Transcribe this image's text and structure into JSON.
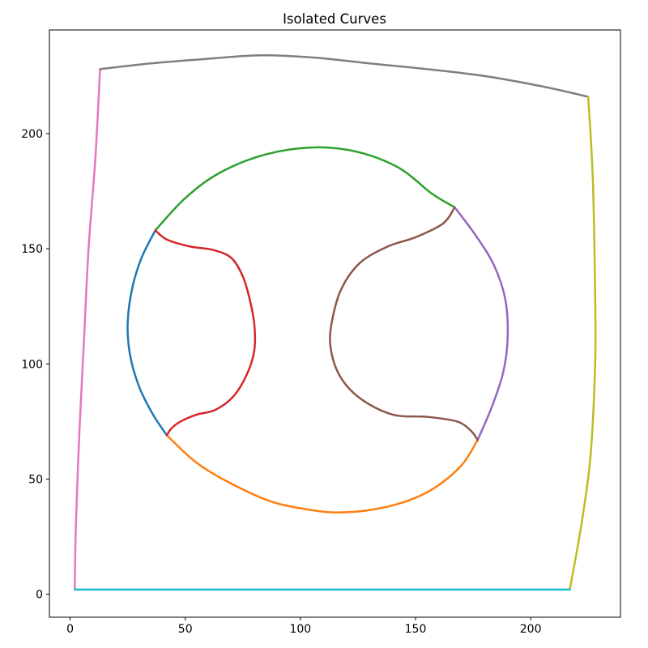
{
  "chart_data": {
    "type": "line",
    "title": "Isolated Curves",
    "xlabel": "",
    "ylabel": "",
    "xlim": [
      -9,
      239
    ],
    "ylim": [
      -10,
      245
    ],
    "x_ticks": [
      0,
      50,
      100,
      150,
      200
    ],
    "y_ticks": [
      0,
      50,
      100,
      150,
      200
    ],
    "grid": false,
    "legend": "none",
    "series": [
      {
        "color": "#1f77b4",
        "points": [
          [
            37,
            158
          ],
          [
            31,
            146
          ],
          [
            27,
            133
          ],
          [
            25,
            118
          ],
          [
            26,
            104
          ],
          [
            30,
            90
          ],
          [
            36,
            78
          ],
          [
            42,
            69
          ]
        ]
      },
      {
        "color": "#ff7f0e",
        "points": [
          [
            42,
            69
          ],
          [
            55,
            57
          ],
          [
            70,
            48
          ],
          [
            88,
            40
          ],
          [
            105,
            36.5
          ],
          [
            116,
            35.5
          ],
          [
            130,
            36.5
          ],
          [
            145,
            40
          ],
          [
            158,
            46
          ],
          [
            170,
            56
          ],
          [
            177,
            67
          ]
        ]
      },
      {
        "color": "#2ca02c",
        "points": [
          [
            37,
            158
          ],
          [
            50,
            172
          ],
          [
            65,
            183
          ],
          [
            85,
            191
          ],
          [
            106,
            194
          ],
          [
            125,
            192
          ],
          [
            143,
            185
          ],
          [
            157,
            174
          ],
          [
            167,
            168
          ]
        ]
      },
      {
        "color": "#d62728",
        "points": [
          [
            37,
            158
          ],
          [
            42,
            154
          ],
          [
            52,
            151
          ],
          [
            62,
            149.5
          ],
          [
            70,
            146
          ],
          [
            75,
            138
          ],
          [
            78,
            128
          ],
          [
            80,
            117
          ],
          [
            80,
            106
          ],
          [
            77,
            96
          ],
          [
            71,
            86
          ],
          [
            63,
            80
          ],
          [
            55,
            78
          ],
          [
            48,
            75
          ],
          [
            44,
            72
          ],
          [
            42,
            69
          ]
        ]
      },
      {
        "color": "#9467bd",
        "points": [
          [
            167,
            168
          ],
          [
            176,
            156
          ],
          [
            184,
            143
          ],
          [
            189,
            128
          ],
          [
            190,
            111
          ],
          [
            188,
            96
          ],
          [
            183,
            81
          ],
          [
            177,
            67
          ]
        ]
      },
      {
        "color": "#8c564b",
        "points": [
          [
            167,
            168
          ],
          [
            162,
            161
          ],
          [
            150,
            155
          ],
          [
            138,
            151
          ],
          [
            126,
            144
          ],
          [
            118,
            133
          ],
          [
            114,
            120
          ],
          [
            113,
            108
          ],
          [
            117,
            95
          ],
          [
            126,
            85
          ],
          [
            140,
            78
          ],
          [
            155,
            77
          ],
          [
            168,
            75
          ],
          [
            174,
            71
          ],
          [
            177,
            67
          ]
        ]
      },
      {
        "color": "#e377c2",
        "points": [
          [
            13,
            228
          ],
          [
            11,
            190
          ],
          [
            8,
            150
          ],
          [
            6,
            110
          ],
          [
            4,
            70
          ],
          [
            2.5,
            30
          ],
          [
            2,
            2
          ]
        ]
      },
      {
        "color": "#7f7f7f",
        "points": [
          [
            13,
            228
          ],
          [
            35,
            230.5
          ],
          [
            60,
            232.5
          ],
          [
            83,
            234
          ],
          [
            106,
            233
          ],
          [
            130,
            230.5
          ],
          [
            155,
            228
          ],
          [
            180,
            225
          ],
          [
            205,
            220.5
          ],
          [
            225,
            216
          ]
        ]
      },
      {
        "color": "#bcbd22",
        "points": [
          [
            225,
            216
          ],
          [
            227,
            180
          ],
          [
            228,
            130
          ],
          [
            228,
            100
          ],
          [
            226,
            60
          ],
          [
            222,
            30
          ],
          [
            217,
            2
          ]
        ]
      },
      {
        "color": "#17becf",
        "points": [
          [
            2,
            2
          ],
          [
            60,
            2
          ],
          [
            120,
            2
          ],
          [
            180,
            2
          ],
          [
            217,
            2
          ]
        ]
      }
    ]
  }
}
